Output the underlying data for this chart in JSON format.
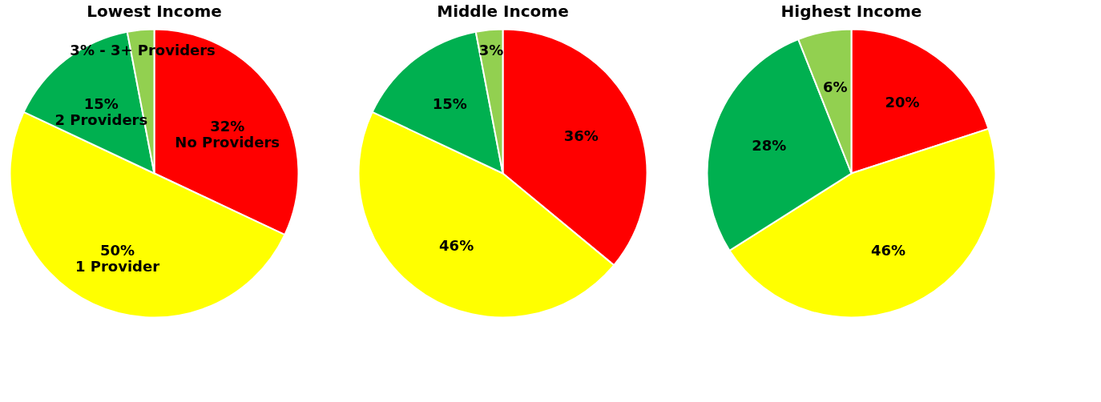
{
  "chart_data": [
    {
      "type": "pie",
      "title": "Lowest Income",
      "categories": [
        null,
        null,
        null,
        null
      ],
      "values": [
        32,
        50,
        15,
        3
      ],
      "colors": [
        "#ff0000",
        "#ffff00",
        "#00b050",
        "#92d050"
      ],
      "value_labels": [
        "32%\nNo  Providers",
        "50%\n1 Provider",
        "15%\n2 Providers",
        "3% - 3+ Providers"
      ],
      "legend": false
    },
    {
      "type": "pie",
      "title": "Middle Income",
      "categories": [
        null,
        null,
        null,
        null
      ],
      "values": [
        36,
        46,
        15,
        3
      ],
      "colors": [
        "#ff0000",
        "#ffff00",
        "#00b050",
        "#92d050"
      ],
      "value_labels": [
        "36%",
        "46%",
        "15%",
        "3%"
      ],
      "legend": false
    },
    {
      "type": "pie",
      "title": "Highest Income",
      "categories": [
        null,
        null,
        null,
        null
      ],
      "values": [
        20,
        46,
        28,
        6
      ],
      "colors": [
        "#ff0000",
        "#ffff00",
        "#00b050",
        "#92d050"
      ],
      "value_labels": [
        "20%",
        "46%",
        "28%",
        "6%"
      ],
      "legend": false
    }
  ]
}
